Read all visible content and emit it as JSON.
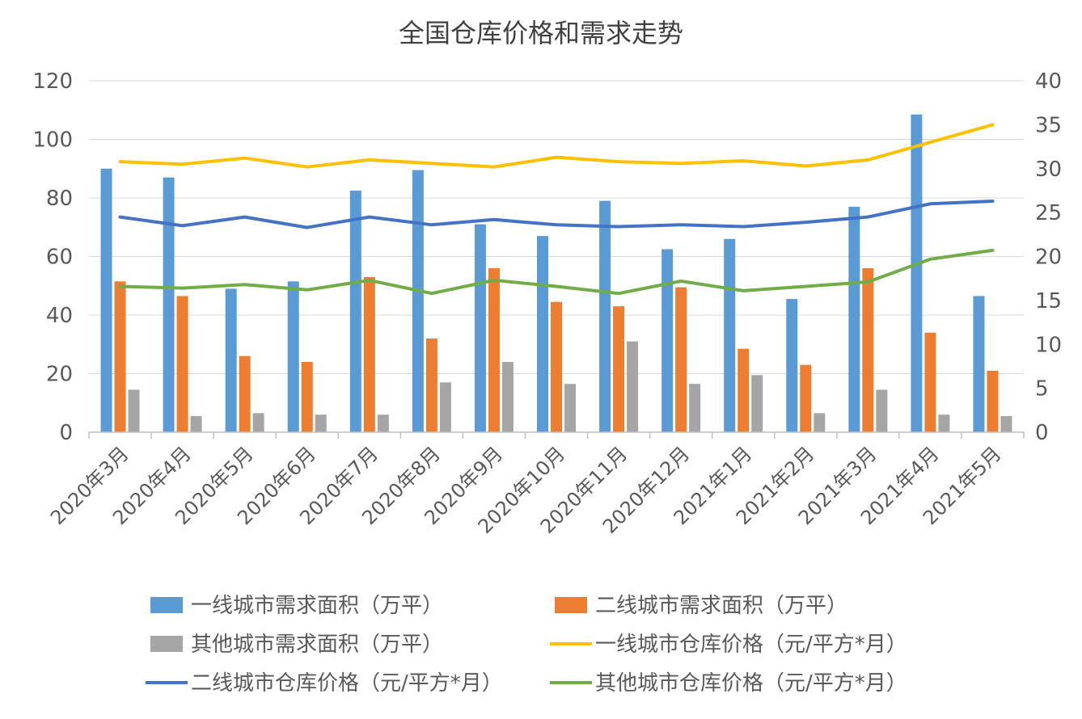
{
  "chart_data": {
    "type": "bar",
    "title": "全国仓库价格和需求走势",
    "categories": [
      "2020年3月",
      "2020年4月",
      "2020年5月",
      "2020年6月",
      "2020年7月",
      "2020年8月",
      "2020年9月",
      "2020年10月",
      "2020年11月",
      "2020年12月",
      "2021年1月",
      "2021年2月",
      "2021年3月",
      "2021年4月",
      "2021年5月"
    ],
    "y_left": {
      "ylim": [
        0,
        120
      ],
      "ticks": [
        "0",
        "20",
        "40",
        "60",
        "80",
        "100",
        "120"
      ]
    },
    "y_right": {
      "ylim": [
        0,
        40
      ],
      "ticks": [
        "0",
        "5",
        "10",
        "15",
        "20",
        "25",
        "30",
        "35",
        "40"
      ]
    },
    "grid": true,
    "legend_position": "bottom",
    "bar_series": [
      {
        "name": "一线城市需求面积（万平）",
        "color": "#5B9BD5",
        "axis": "left",
        "values": [
          90,
          87,
          49,
          51.5,
          82.5,
          89.5,
          71,
          67,
          79,
          62.5,
          66,
          45.5,
          77,
          108.5,
          46.5
        ]
      },
      {
        "name": "二线城市需求面积（万平）",
        "color": "#ED7D31",
        "axis": "left",
        "values": [
          51.5,
          46.5,
          26,
          24,
          53,
          32,
          56,
          44.5,
          43,
          49.5,
          28.5,
          23,
          56,
          34,
          21
        ]
      },
      {
        "name": "其他城市需求面积（万平）",
        "color": "#A5A5A5",
        "axis": "left",
        "values": [
          14.5,
          5.5,
          6.5,
          6,
          6,
          17,
          24,
          16.5,
          31,
          16.5,
          19.5,
          6.5,
          14.5,
          6,
          5.5
        ]
      }
    ],
    "line_series": [
      {
        "name": "一线城市仓库价格（元/平方*月）",
        "color": "#FFC000",
        "axis": "right",
        "values": [
          30.8,
          30.5,
          31.2,
          30.2,
          31,
          30.6,
          30.2,
          31.3,
          30.8,
          30.6,
          30.9,
          30.3,
          31,
          33,
          35
        ]
      },
      {
        "name": "二线城市仓库价格（元/平方*月）",
        "color": "#4472C4",
        "axis": "right",
        "values": [
          24.5,
          23.5,
          24.5,
          23.3,
          24.5,
          23.6,
          24.2,
          23.6,
          23.4,
          23.6,
          23.4,
          23.9,
          24.5,
          26,
          26.3
        ]
      },
      {
        "name": "其他城市仓库价格（元/平方*月）",
        "color": "#70AD47",
        "axis": "right",
        "values": [
          16.6,
          16.4,
          16.8,
          16.2,
          17.3,
          15.8,
          17.3,
          16.6,
          15.8,
          17.2,
          16.1,
          16.6,
          17.1,
          19.7,
          20.7
        ]
      }
    ],
    "legend_order": [
      0,
      1,
      2,
      3,
      4,
      5
    ]
  }
}
